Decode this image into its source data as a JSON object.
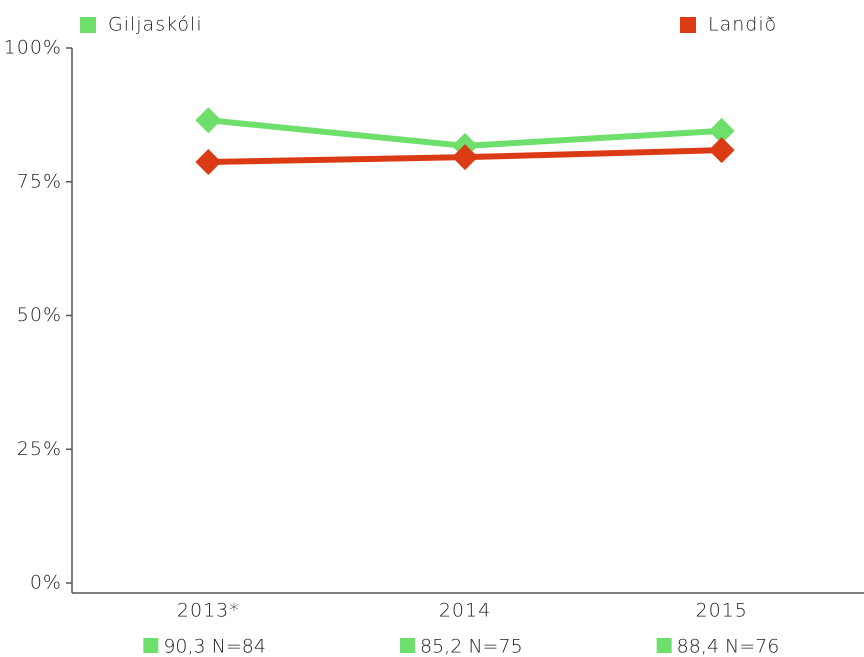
{
  "chart_data": {
    "type": "line",
    "categories": [
      "2013*",
      "2014",
      "2015"
    ],
    "series": [
      {
        "name": "Giljaskóli",
        "color": "#6ddf6a",
        "values": [
          86.5,
          81.7,
          84.5
        ]
      },
      {
        "name": "Landið",
        "color": "#db3b14",
        "values": [
          78.7,
          79.6,
          80.9
        ]
      }
    ],
    "ylim": [
      0,
      100
    ],
    "yticks": [
      {
        "value": 0,
        "label": "0%"
      },
      {
        "value": 25,
        "label": "25%"
      },
      {
        "value": 50,
        "label": "50%"
      },
      {
        "value": 75,
        "label": "75%"
      },
      {
        "value": 100,
        "label": "100%"
      }
    ],
    "annotations": [
      "90,3 N=84",
      "85,2 N=75",
      "88,4 N=76"
    ],
    "grid": false
  }
}
